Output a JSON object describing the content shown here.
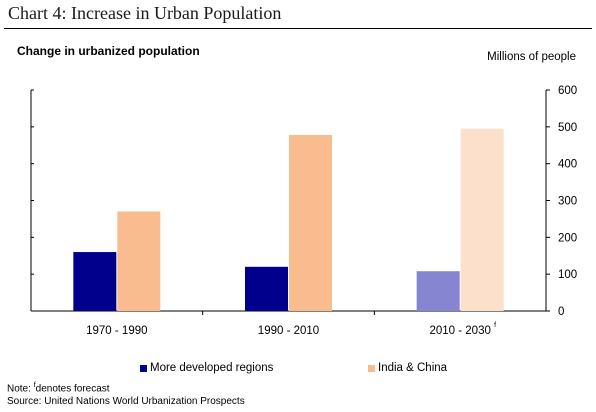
{
  "page": {
    "title": "Chart 4: Increase in Urban Population",
    "note_prefix": "Note:",
    "note_marker": "f",
    "note_text": "denotes forecast",
    "source": "Source: United Nations World Urbanization Prospects"
  },
  "chart_data": {
    "type": "bar",
    "subtitle": "Change in urbanized population",
    "ylabel": "Millions of people",
    "ylim": [
      0,
      600
    ],
    "yticks": [
      0,
      100,
      200,
      300,
      400,
      500,
      600
    ],
    "y_axis_side": "right",
    "grid": false,
    "categories": [
      {
        "label": "1970 - 1990",
        "forecast_mark": ""
      },
      {
        "label": "1990 - 2010",
        "forecast_mark": ""
      },
      {
        "label": "2010 - 2030",
        "forecast_mark": "f"
      }
    ],
    "series": [
      {
        "name": "More developed regions",
        "color": "#00008c",
        "forecast_color": "#8585d1",
        "values": [
          160,
          120,
          108
        ]
      },
      {
        "name": "India & China",
        "color": "#f9bc8f",
        "forecast_color": "#fde0cb",
        "values": [
          270,
          478,
          495
        ]
      }
    ],
    "forecast_category_index": 2,
    "legend_position": "bottom"
  }
}
